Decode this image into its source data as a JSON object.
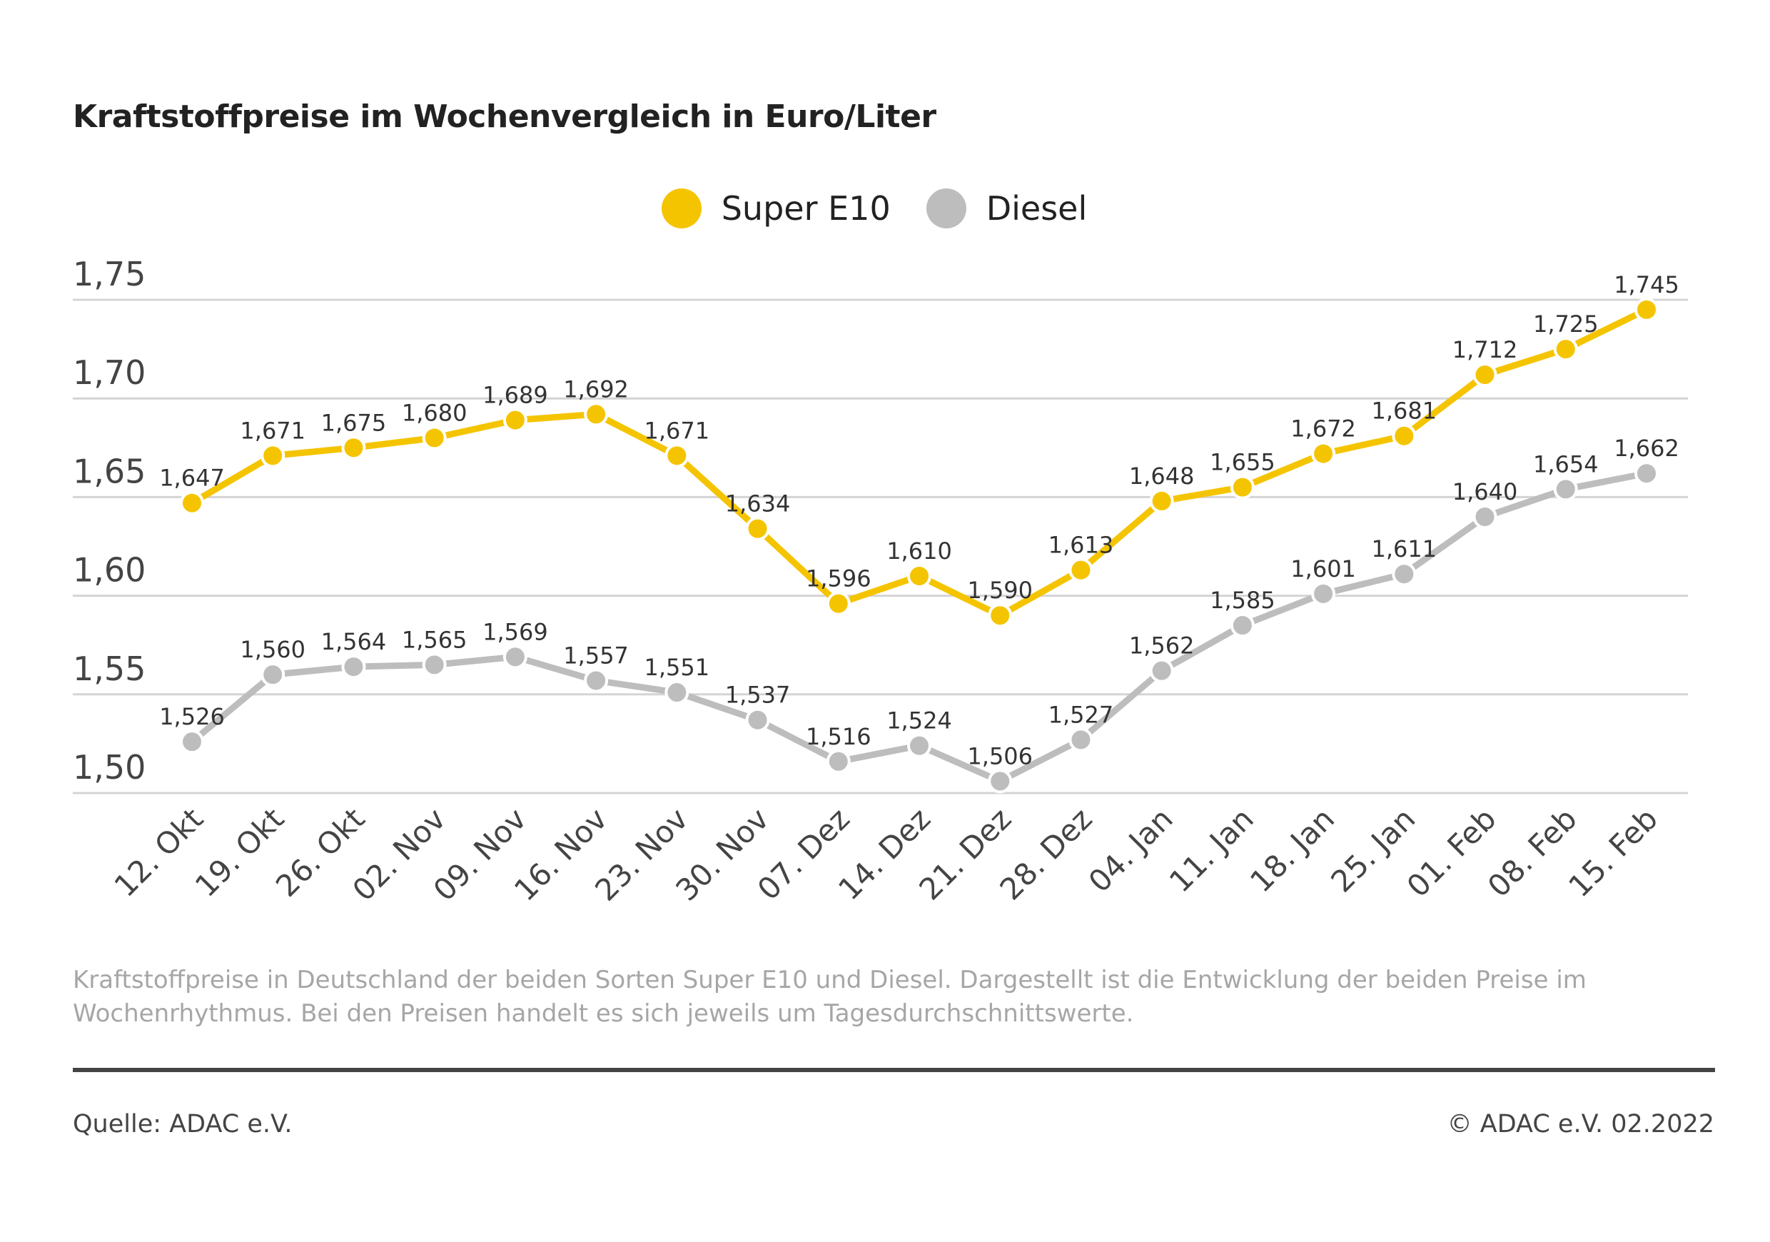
{
  "chart_data": {
    "type": "line",
    "title": "Kraftstoffpreise im Wochenvergleich in Euro/Liter",
    "categories": [
      "12. Okt",
      "19. Okt",
      "26. Okt",
      "02. Nov",
      "09. Nov",
      "16. Nov",
      "23. Nov",
      "30. Nov",
      "07. Dez",
      "14. Dez",
      "21. Dez",
      "28. Dez",
      "04. Jan",
      "11. Jan",
      "18. Jan",
      "25. Jan",
      "01. Feb",
      "08. Feb",
      "15. Feb"
    ],
    "series": [
      {
        "name": "Super E10",
        "color": "#f5c400",
        "values": [
          1.647,
          1.671,
          1.675,
          1.68,
          1.689,
          1.692,
          1.671,
          1.634,
          1.596,
          1.61,
          1.59,
          1.613,
          1.648,
          1.655,
          1.672,
          1.681,
          1.712,
          1.725,
          1.745
        ],
        "labels": [
          "1,647",
          "1,671",
          "1,675",
          "1,680",
          "1,689",
          "1,692",
          "1,671",
          "1,634",
          "1,596",
          "1,610",
          "1,590",
          "1,613",
          "1,648",
          "1,655",
          "1,672",
          "1,681",
          "1,712",
          "1,725",
          "1,745"
        ]
      },
      {
        "name": "Diesel",
        "color": "#bdbdbd",
        "values": [
          1.526,
          1.56,
          1.564,
          1.565,
          1.569,
          1.557,
          1.551,
          1.537,
          1.516,
          1.524,
          1.506,
          1.527,
          1.562,
          1.585,
          1.601,
          1.611,
          1.64,
          1.654,
          1.662
        ],
        "labels": [
          "1,526",
          "1,560",
          "1,564",
          "1,565",
          "1,569",
          "1,557",
          "1,551",
          "1,537",
          "1,516",
          "1,524",
          "1,506",
          "1,527",
          "1,562",
          "1,585",
          "1,601",
          "1,611",
          "1,640",
          "1,654",
          "1,662"
        ]
      }
    ],
    "yticks": [
      1.5,
      1.55,
      1.6,
      1.65,
      1.7,
      1.75
    ],
    "ytick_labels": [
      "1,50",
      "1,55",
      "1,60",
      "1,65",
      "1,70",
      "1,75"
    ],
    "ylim": [
      1.5,
      1.75
    ],
    "grid": true,
    "legend": "top-center"
  },
  "footnote": "Kraftstoffpreise in Deutschland der beiden Sorten Super E10 und Diesel. Dargestellt ist die Entwicklung der beiden Preise im Wochenrhythmus. Bei den Preisen handelt es sich jeweils um Tagesdurchschnittswerte.",
  "source": "Quelle: ADAC e.V.",
  "copyright": "© ADAC e.V. 02.2022"
}
